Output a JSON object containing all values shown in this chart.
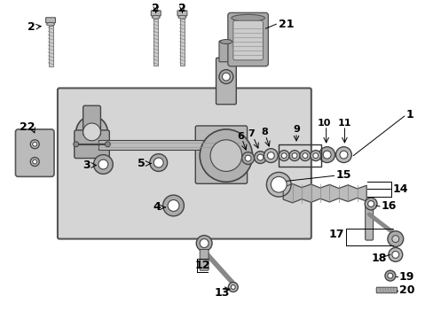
{
  "bg_color": "#ffffff",
  "box_bg": "#d8d8d8",
  "lc": "#444444",
  "part_fill": "#b0b0b0",
  "part_dark": "#888888",
  "part_light": "#d0d0d0",
  "white": "#ffffff",
  "fs": 7.5,
  "fs_label": 8.0
}
